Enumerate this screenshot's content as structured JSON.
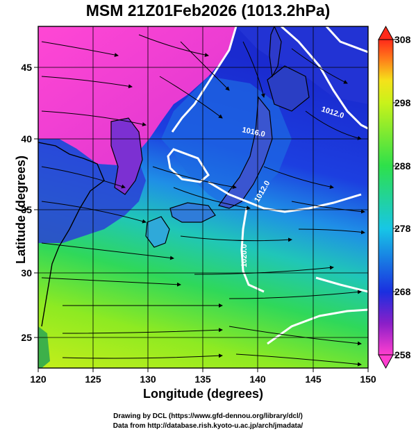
{
  "title": "MSM 21Z01Feb2026 (1013.2hPa)",
  "axes": {
    "xlabel": "Longitude (degrees)",
    "ylabel": "Latitude  (degrees)",
    "xticks": [
      "120",
      "125",
      "130",
      "135",
      "140",
      "145",
      "150"
    ],
    "yticks": [
      "25",
      "30",
      "35",
      "40",
      "45"
    ],
    "xrange": [
      120,
      150
    ],
    "yrange": [
      22.6,
      47.6
    ]
  },
  "colorbar": {
    "range": [
      258,
      308
    ],
    "ticks": [
      "308",
      "298",
      "288",
      "278",
      "268",
      "258"
    ],
    "colors": [
      "#ff3ecf",
      "#8a1fc8",
      "#1a2fe0",
      "#17c6e6",
      "#2ee04a",
      "#c9f21a",
      "#f5e21a",
      "#ff7a1a",
      "#ff2a1a"
    ]
  },
  "contour_labels": [
    "1012.0",
    "1016.0",
    "1012.0",
    "1020.0"
  ],
  "credits": [
    "Drawing by DCL (https://www.gfd-dennou.org/library/dcl/)",
    "Data from http://database.rish.kyoto-u.ac.jp/arch/jmadata/"
  ]
}
